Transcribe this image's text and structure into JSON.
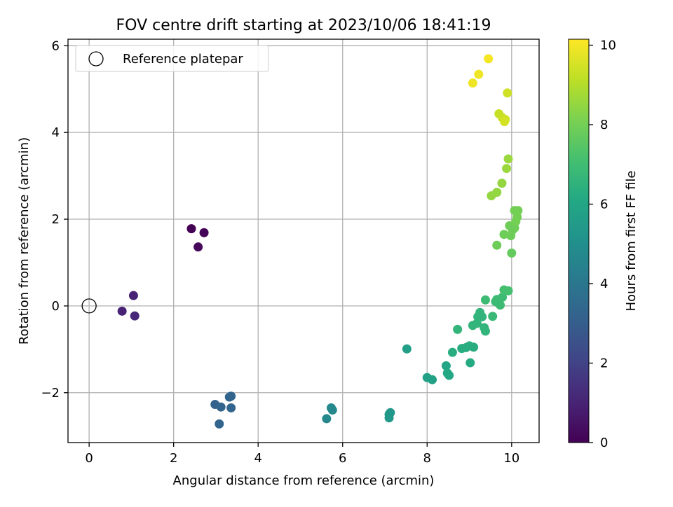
{
  "chart_data": {
    "type": "scatter",
    "title": "FOV centre drift starting at 2023/10/06 18:41:19",
    "xlabel": "Angular distance from reference (arcmin)",
    "ylabel": "Rotation from reference (arcmin)",
    "xlim": [
      -0.5,
      10.65
    ],
    "ylim": [
      -3.15,
      6.15
    ],
    "xticks": [
      0,
      2,
      4,
      6,
      8,
      10
    ],
    "yticks": [
      -2,
      0,
      2,
      4,
      6
    ],
    "xtick_labels": [
      "0",
      "2",
      "4",
      "6",
      "8",
      "10"
    ],
    "ytick_labels": [
      "−2",
      "0",
      "2",
      "4",
      "6"
    ],
    "grid": true,
    "legend": {
      "position": "top-left",
      "label": "Reference platepar"
    },
    "reference_point": {
      "x": 0,
      "y": 0
    },
    "colorbar": {
      "label": "Hours from first FF file",
      "range": [
        0,
        10.15
      ],
      "ticks": [
        0,
        2,
        4,
        6,
        8,
        10
      ],
      "tick_labels": [
        "0",
        "2",
        "4",
        "6",
        "8",
        "10"
      ],
      "colormap": "viridis"
    },
    "points": [
      {
        "x": 2.42,
        "y": 1.78,
        "h": 0.0
      },
      {
        "x": 2.72,
        "y": 1.69,
        "h": 0.1
      },
      {
        "x": 2.58,
        "y": 1.36,
        "h": 0.2
      },
      {
        "x": 1.05,
        "y": 0.24,
        "h": 1.0
      },
      {
        "x": 0.78,
        "y": -0.12,
        "h": 1.0
      },
      {
        "x": 1.08,
        "y": -0.23,
        "h": 1.1
      },
      {
        "x": 2.98,
        "y": -2.27,
        "h": 3.2
      },
      {
        "x": 3.12,
        "y": -2.33,
        "h": 3.3
      },
      {
        "x": 3.32,
        "y": -2.1,
        "h": 3.3
      },
      {
        "x": 3.36,
        "y": -2.08,
        "h": 3.3
      },
      {
        "x": 3.36,
        "y": -2.35,
        "h": 3.3
      },
      {
        "x": 3.08,
        "y": -2.72,
        "h": 3.3
      },
      {
        "x": 5.62,
        "y": -2.6,
        "h": 4.7
      },
      {
        "x": 5.73,
        "y": -2.35,
        "h": 4.7
      },
      {
        "x": 5.76,
        "y": -2.4,
        "h": 4.7
      },
      {
        "x": 7.1,
        "y": -2.5,
        "h": 5.4
      },
      {
        "x": 7.13,
        "y": -2.46,
        "h": 5.4
      },
      {
        "x": 7.1,
        "y": -2.58,
        "h": 5.4
      },
      {
        "x": 7.52,
        "y": -0.99,
        "h": 5.7
      },
      {
        "x": 8.0,
        "y": -1.65,
        "h": 5.8
      },
      {
        "x": 8.12,
        "y": -1.7,
        "h": 5.8
      },
      {
        "x": 8.45,
        "y": -1.38,
        "h": 6.0
      },
      {
        "x": 8.48,
        "y": -1.55,
        "h": 6.1
      },
      {
        "x": 8.52,
        "y": -1.6,
        "h": 6.1
      },
      {
        "x": 8.6,
        "y": -1.07,
        "h": 6.3
      },
      {
        "x": 8.72,
        "y": -0.54,
        "h": 6.6
      },
      {
        "x": 8.82,
        "y": -0.98,
        "h": 6.3
      },
      {
        "x": 8.92,
        "y": -0.96,
        "h": 6.3
      },
      {
        "x": 9.0,
        "y": -0.92,
        "h": 6.3
      },
      {
        "x": 9.1,
        "y": -0.95,
        "h": 6.3
      },
      {
        "x": 9.02,
        "y": -1.31,
        "h": 6.2
      },
      {
        "x": 9.08,
        "y": -0.45,
        "h": 6.6
      },
      {
        "x": 9.18,
        "y": -0.4,
        "h": 6.6
      },
      {
        "x": 9.2,
        "y": -0.25,
        "h": 6.6
      },
      {
        "x": 9.25,
        "y": -0.15,
        "h": 6.6
      },
      {
        "x": 9.3,
        "y": -0.25,
        "h": 6.6
      },
      {
        "x": 9.35,
        "y": -0.5,
        "h": 6.6
      },
      {
        "x": 9.38,
        "y": -0.58,
        "h": 6.6
      },
      {
        "x": 9.38,
        "y": 0.14,
        "h": 6.9
      },
      {
        "x": 9.55,
        "y": -0.24,
        "h": 6.8
      },
      {
        "x": 9.62,
        "y": 0.1,
        "h": 6.9
      },
      {
        "x": 9.65,
        "y": 0.15,
        "h": 6.9
      },
      {
        "x": 9.7,
        "y": 0.05,
        "h": 6.9
      },
      {
        "x": 9.73,
        "y": 0.02,
        "h": 6.9
      },
      {
        "x": 9.78,
        "y": 0.2,
        "h": 6.9
      },
      {
        "x": 9.82,
        "y": 0.37,
        "h": 7.1
      },
      {
        "x": 9.92,
        "y": 0.35,
        "h": 7.1
      },
      {
        "x": 9.65,
        "y": 1.4,
        "h": 7.9
      },
      {
        "x": 9.82,
        "y": 1.65,
        "h": 7.9
      },
      {
        "x": 9.95,
        "y": 1.85,
        "h": 7.9
      },
      {
        "x": 9.98,
        "y": 1.62,
        "h": 7.9
      },
      {
        "x": 10.0,
        "y": 1.22,
        "h": 7.7
      },
      {
        "x": 10.02,
        "y": 1.75,
        "h": 7.9
      },
      {
        "x": 10.07,
        "y": 1.8,
        "h": 7.9
      },
      {
        "x": 10.1,
        "y": 1.95,
        "h": 8.0
      },
      {
        "x": 10.13,
        "y": 2.05,
        "h": 8.0
      },
      {
        "x": 10.07,
        "y": 2.2,
        "h": 8.0
      },
      {
        "x": 10.15,
        "y": 2.2,
        "h": 8.0
      },
      {
        "x": 9.52,
        "y": 2.54,
        "h": 8.5
      },
      {
        "x": 9.65,
        "y": 2.62,
        "h": 8.5
      },
      {
        "x": 9.77,
        "y": 2.83,
        "h": 8.5
      },
      {
        "x": 9.88,
        "y": 3.17,
        "h": 8.6
      },
      {
        "x": 9.92,
        "y": 3.39,
        "h": 8.6
      },
      {
        "x": 9.7,
        "y": 4.43,
        "h": 9.3
      },
      {
        "x": 9.78,
        "y": 4.34,
        "h": 9.3
      },
      {
        "x": 9.85,
        "y": 4.3,
        "h": 9.4
      },
      {
        "x": 9.83,
        "y": 4.25,
        "h": 9.5
      },
      {
        "x": 9.9,
        "y": 4.91,
        "h": 9.4
      },
      {
        "x": 9.08,
        "y": 5.14,
        "h": 9.9
      },
      {
        "x": 9.22,
        "y": 5.34,
        "h": 9.9
      },
      {
        "x": 9.45,
        "y": 5.7,
        "h": 10.0
      }
    ]
  }
}
